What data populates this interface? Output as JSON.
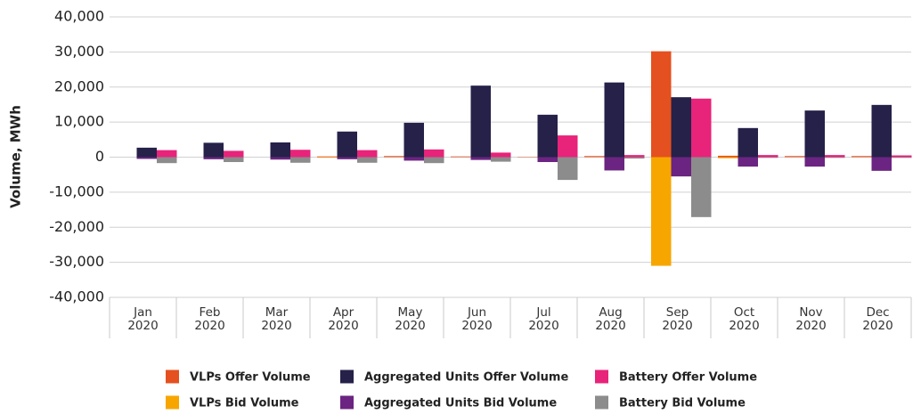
{
  "chart_data": {
    "type": "bar",
    "y_label": "Volume, MWh",
    "categories": [
      "Jan 2020",
      "Feb 2020",
      "Mar 2020",
      "Apr 2020",
      "May 2020",
      "Jun 2020",
      "Jul 2020",
      "Aug 2020",
      "Sep 2020",
      "Oct 2020",
      "Nov 2020",
      "Dec 2020"
    ],
    "series": [
      {
        "name": "VLPs Offer Volume",
        "color": "#e4501f",
        "values": [
          0,
          0,
          0,
          200,
          300,
          200,
          100,
          300,
          30200,
          400,
          300,
          300
        ]
      },
      {
        "name": "VLPs Bid Volume",
        "color": "#f7a600",
        "values": [
          0,
          0,
          0,
          -100,
          0,
          0,
          0,
          0,
          -31000,
          -300,
          0,
          0
        ]
      },
      {
        "name": "Aggregated Units Offer Volume",
        "color": "#252149",
        "values": [
          2700,
          4100,
          4200,
          7300,
          9800,
          20400,
          12100,
          21300,
          17100,
          8300,
          13300,
          14900
        ]
      },
      {
        "name": "Aggregated Units Bid Volume",
        "color": "#6b2481",
        "values": [
          -500,
          -600,
          -700,
          -600,
          -1000,
          -800,
          -1400,
          -3800,
          -5500,
          -2700,
          -2700,
          -3900
        ]
      },
      {
        "name": "Battery Offer Volume",
        "color": "#e8237a",
        "values": [
          2000,
          1800,
          2100,
          2000,
          2200,
          1300,
          6200,
          600,
          16700,
          600,
          600,
          500
        ]
      },
      {
        "name": "Battery Bid Volume",
        "color": "#8c8c8c",
        "values": [
          -1700,
          -1400,
          -1600,
          -1600,
          -1700,
          -1300,
          -6500,
          -400,
          -17100,
          -200,
          -200,
          -200
        ]
      }
    ],
    "ylim": [
      -40000,
      40000
    ],
    "yticks": [
      {
        "value": -40000,
        "label": "-40,000"
      },
      {
        "value": -30000,
        "label": "-30,000"
      },
      {
        "value": -20000,
        "label": "-20,000"
      },
      {
        "value": -10000,
        "label": "-10,000"
      },
      0,
      {
        "value": 10000,
        "label": "10,000"
      },
      {
        "value": 20000,
        "label": "20,000"
      },
      {
        "value": 30000,
        "label": "30,000"
      },
      {
        "value": 40000,
        "label": "40,000"
      }
    ],
    "grid": true
  }
}
